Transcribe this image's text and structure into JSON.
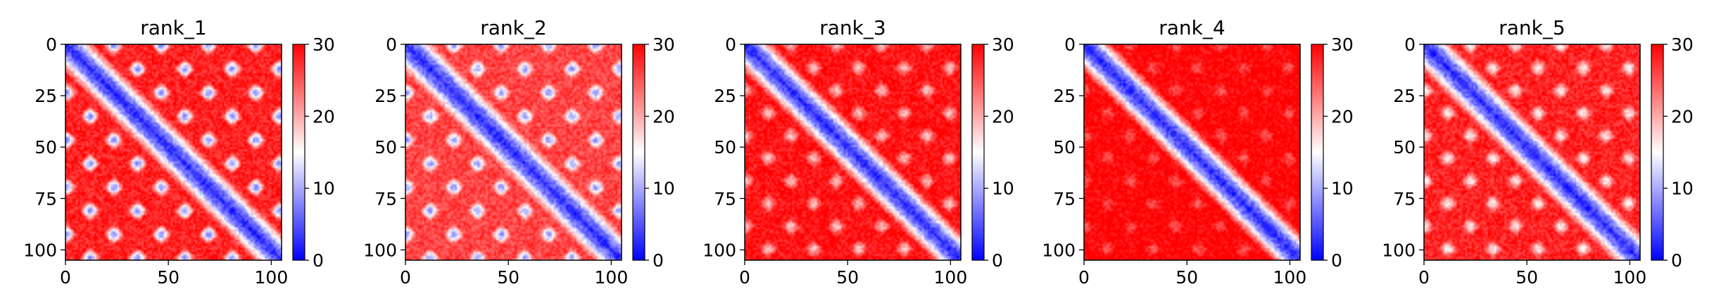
{
  "chart_data": [
    {
      "type": "heatmap",
      "title": "rank_1",
      "size": 105,
      "xlim": [
        0,
        105
      ],
      "ylim": [
        105,
        0
      ],
      "xticks": [
        0,
        50,
        100
      ],
      "yticks": [
        0,
        25,
        50,
        75,
        100
      ],
      "colorbar": {
        "min": 0,
        "max": 30,
        "ticks": [
          0,
          10,
          20,
          30
        ],
        "colormap": "bwr"
      },
      "pattern": {
        "band_width": 4,
        "offdiag_strength": 0.9,
        "period": 23,
        "far_value": 28
      }
    },
    {
      "type": "heatmap",
      "title": "rank_2",
      "size": 105,
      "xlim": [
        0,
        105
      ],
      "ylim": [
        105,
        0
      ],
      "xticks": [
        0,
        50,
        100
      ],
      "yticks": [
        0,
        25,
        50,
        75,
        100
      ],
      "colorbar": {
        "min": 0,
        "max": 30,
        "ticks": [
          0,
          10,
          20,
          30
        ],
        "colormap": "bwr"
      },
      "pattern": {
        "band_width": 4,
        "offdiag_strength": 0.85,
        "period": 23,
        "far_value": 26
      }
    },
    {
      "type": "heatmap",
      "title": "rank_3",
      "size": 105,
      "xlim": [
        0,
        105
      ],
      "ylim": [
        105,
        0
      ],
      "xticks": [
        0,
        50,
        100
      ],
      "yticks": [
        0,
        25,
        50,
        75,
        100
      ],
      "colorbar": {
        "min": 0,
        "max": 30,
        "ticks": [
          0,
          10,
          20,
          30
        ],
        "colormap": "bwr"
      },
      "pattern": {
        "band_width": 4,
        "offdiag_strength": 0.45,
        "period": 22,
        "far_value": 29
      }
    },
    {
      "type": "heatmap",
      "title": "rank_4",
      "size": 105,
      "xlim": [
        0,
        105
      ],
      "ylim": [
        105,
        0
      ],
      "xticks": [
        0,
        50,
        100
      ],
      "yticks": [
        0,
        25,
        50,
        75,
        100
      ],
      "colorbar": {
        "min": 0,
        "max": 30,
        "ticks": [
          0,
          10,
          20,
          30
        ],
        "colormap": "bwr"
      },
      "pattern": {
        "band_width": 4,
        "offdiag_strength": 0.2,
        "period": 22,
        "far_value": 30
      }
    },
    {
      "type": "heatmap",
      "title": "rank_5",
      "size": 105,
      "xlim": [
        0,
        105
      ],
      "ylim": [
        105,
        0
      ],
      "xticks": [
        0,
        50,
        100
      ],
      "yticks": [
        0,
        25,
        50,
        75,
        100
      ],
      "colorbar": {
        "min": 0,
        "max": 30,
        "ticks": [
          0,
          10,
          20,
          30
        ],
        "colormap": "bwr"
      },
      "pattern": {
        "band_width": 4,
        "offdiag_strength": 0.55,
        "period": 22,
        "far_value": 28
      }
    }
  ]
}
